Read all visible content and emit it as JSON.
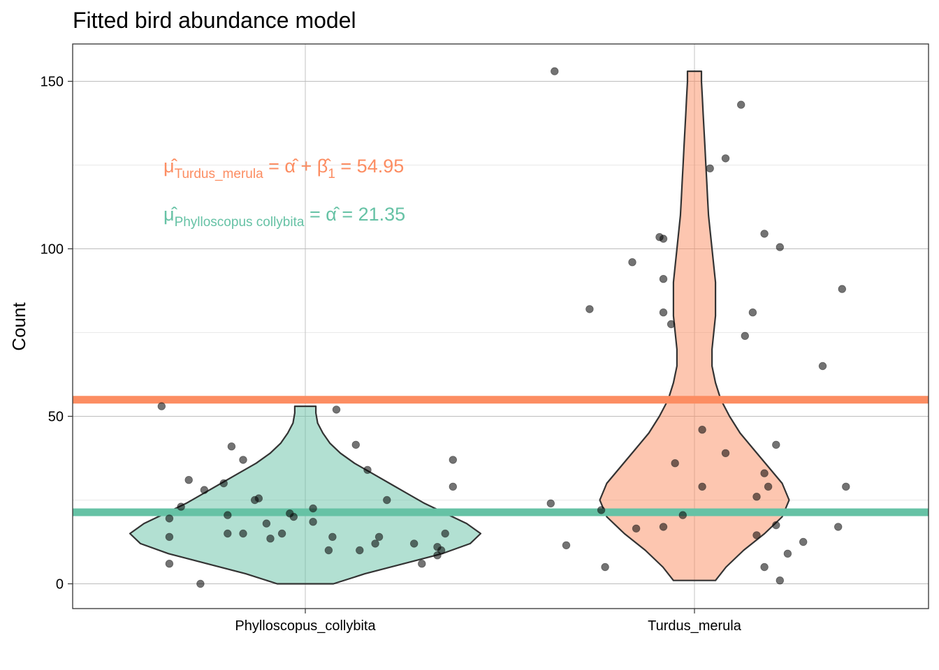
{
  "chart_data": {
    "type": "violin",
    "title": "Fitted bird abundance model",
    "xlabel": "",
    "ylabel": "Count",
    "categories": [
      "Phylloscopus_collybita",
      "Turdus_merula"
    ],
    "ylim": [
      -7,
      160
    ],
    "yticks": [
      0,
      50,
      100,
      150
    ],
    "grid": true,
    "colors": {
      "Phylloscopus_collybita": "#66c2a5",
      "Turdus_merula": "#fc8d62"
    },
    "fitted_means": [
      {
        "category": "Turdus_merula",
        "value": 54.95,
        "color": "#fc8d62",
        "formula": {
          "symbol": "μ̂",
          "subscript": "Turdus_merula",
          "expr": "=  α̂ + β̂",
          "expr_sub": "1",
          "tail": "=  54.95"
        }
      },
      {
        "category": "Phylloscopus_collybita",
        "value": 21.35,
        "color": "#66c2a5",
        "formula": {
          "symbol": "μ̂",
          "subscript": "Phylloscopus collybita",
          "expr": "=  α̂",
          "expr_sub": "",
          "tail": "=  21.35"
        }
      }
    ],
    "violins": [
      {
        "category": "Phylloscopus_collybita",
        "profile": [
          [
            0,
            0.16
          ],
          [
            3,
            0.34
          ],
          [
            6,
            0.56
          ],
          [
            9,
            0.78
          ],
          [
            12,
            0.94
          ],
          [
            15,
            1.0
          ],
          [
            18,
            0.92
          ],
          [
            21,
            0.8
          ],
          [
            24,
            0.68
          ],
          [
            27,
            0.58
          ],
          [
            30,
            0.48
          ],
          [
            33,
            0.38
          ],
          [
            36,
            0.28
          ],
          [
            39,
            0.2
          ],
          [
            42,
            0.14
          ],
          [
            45,
            0.1
          ],
          [
            48,
            0.07
          ],
          [
            51,
            0.06
          ],
          [
            53,
            0.06
          ]
        ]
      },
      {
        "category": "Turdus_merula",
        "profile": [
          [
            1,
            0.12
          ],
          [
            5,
            0.18
          ],
          [
            10,
            0.28
          ],
          [
            15,
            0.4
          ],
          [
            20,
            0.5
          ],
          [
            25,
            0.54
          ],
          [
            30,
            0.5
          ],
          [
            35,
            0.42
          ],
          [
            40,
            0.34
          ],
          [
            45,
            0.26
          ],
          [
            50,
            0.2
          ],
          [
            55,
            0.15
          ],
          [
            60,
            0.12
          ],
          [
            65,
            0.1
          ],
          [
            70,
            0.1
          ],
          [
            75,
            0.11
          ],
          [
            80,
            0.12
          ],
          [
            85,
            0.12
          ],
          [
            90,
            0.12
          ],
          [
            95,
            0.11
          ],
          [
            100,
            0.1
          ],
          [
            105,
            0.09
          ],
          [
            110,
            0.08
          ],
          [
            115,
            0.075
          ],
          [
            120,
            0.07
          ],
          [
            125,
            0.065
          ],
          [
            130,
            0.06
          ],
          [
            135,
            0.055
          ],
          [
            140,
            0.05
          ],
          [
            145,
            0.045
          ],
          [
            150,
            0.04
          ],
          [
            153,
            0.04
          ]
        ]
      }
    ],
    "points": [
      {
        "category": "Phylloscopus_collybita",
        "values": [
          [
            -0.37,
            53
          ],
          [
            -0.35,
            19.5
          ],
          [
            -0.35,
            14
          ],
          [
            -0.35,
            6
          ],
          [
            -0.32,
            23
          ],
          [
            -0.3,
            31
          ],
          [
            -0.27,
            0
          ],
          [
            -0.26,
            28
          ],
          [
            -0.21,
            30
          ],
          [
            -0.2,
            15
          ],
          [
            -0.2,
            20.5
          ],
          [
            -0.19,
            41
          ],
          [
            -0.16,
            15
          ],
          [
            -0.16,
            37
          ],
          [
            -0.13,
            25
          ],
          [
            -0.12,
            25.5
          ],
          [
            -0.1,
            18
          ],
          [
            -0.09,
            13.5
          ],
          [
            -0.06,
            15
          ],
          [
            -0.04,
            21
          ],
          [
            -0.03,
            20
          ],
          [
            0.02,
            22.5
          ],
          [
            0.02,
            18.5
          ],
          [
            0.06,
            10
          ],
          [
            0.07,
            14
          ],
          [
            0.08,
            52
          ],
          [
            0.14,
            10
          ],
          [
            0.13,
            41.5
          ],
          [
            0.16,
            34
          ],
          [
            0.18,
            12
          ],
          [
            0.19,
            14
          ],
          [
            0.21,
            25
          ],
          [
            0.28,
            12
          ],
          [
            0.3,
            6
          ],
          [
            0.34,
            8.5
          ],
          [
            0.34,
            11
          ],
          [
            0.35,
            10
          ],
          [
            0.36,
            15
          ],
          [
            0.38,
            37
          ],
          [
            0.38,
            29
          ]
        ]
      },
      {
        "category": "Turdus_merula",
        "values": [
          [
            -0.37,
            24
          ],
          [
            -0.36,
            153
          ],
          [
            -0.33,
            11.5
          ],
          [
            -0.27,
            82
          ],
          [
            -0.24,
            22
          ],
          [
            -0.23,
            5
          ],
          [
            -0.16,
            96
          ],
          [
            -0.15,
            16.5
          ],
          [
            -0.09,
            103.5
          ],
          [
            -0.08,
            103
          ],
          [
            -0.08,
            91
          ],
          [
            -0.08,
            81
          ],
          [
            -0.08,
            17
          ],
          [
            -0.06,
            77.5
          ],
          [
            -0.05,
            36
          ],
          [
            -0.03,
            20.5
          ],
          [
            0.02,
            46
          ],
          [
            0.02,
            29
          ],
          [
            0.04,
            124
          ],
          [
            0.08,
            39
          ],
          [
            0.08,
            127
          ],
          [
            0.12,
            143
          ],
          [
            0.13,
            74
          ],
          [
            0.15,
            81
          ],
          [
            0.16,
            14.5
          ],
          [
            0.16,
            26
          ],
          [
            0.18,
            33
          ],
          [
            0.18,
            5
          ],
          [
            0.18,
            104.5
          ],
          [
            0.19,
            29
          ],
          [
            0.21,
            41.5
          ],
          [
            0.21,
            17.5
          ],
          [
            0.22,
            100.5
          ],
          [
            0.22,
            1
          ],
          [
            0.24,
            9
          ],
          [
            0.28,
            12.5
          ],
          [
            0.33,
            65
          ],
          [
            0.37,
            17
          ],
          [
            0.38,
            88
          ],
          [
            0.39,
            29
          ]
        ]
      }
    ]
  }
}
